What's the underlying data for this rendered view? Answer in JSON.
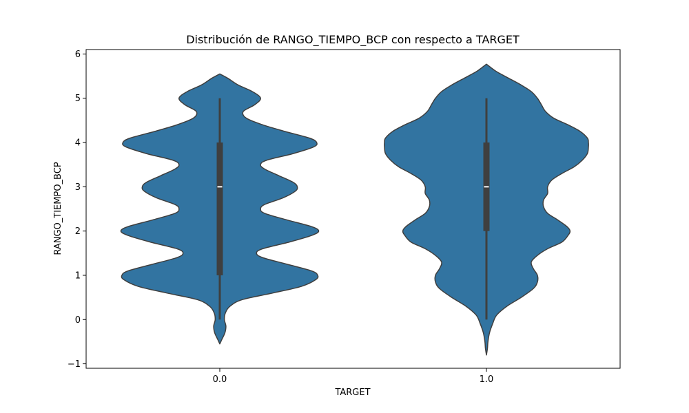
{
  "chart_data": {
    "type": "violin",
    "title": "Distribución de RANGO_TIEMPO_BCP con respecto a TARGET",
    "xlabel": "TARGET",
    "ylabel": "RANGO_TIEMPO_BCP",
    "categories": [
      "0.0",
      "1.0"
    ],
    "ylim": [
      -1.1,
      6.1
    ],
    "yticks": [
      -1,
      0,
      1,
      2,
      3,
      4,
      5,
      6
    ],
    "ytick_labels": [
      "−1",
      "0",
      "1",
      "2",
      "3",
      "4",
      "5",
      "6"
    ],
    "grid": false,
    "fill_color": "#3274a1",
    "edge_color": "#3f3f3f",
    "violins": [
      {
        "category": "0.0",
        "quartiles": {
          "q1": 1,
          "median": 3,
          "q3": 4
        },
        "whiskers": [
          0,
          5
        ],
        "density": [
          [
            -0.55,
            0.0
          ],
          [
            -0.45,
            0.02
          ],
          [
            -0.3,
            0.05
          ],
          [
            -0.15,
            0.06
          ],
          [
            0.0,
            0.045
          ],
          [
            0.15,
            0.055
          ],
          [
            0.3,
            0.1
          ],
          [
            0.45,
            0.22
          ],
          [
            0.6,
            0.52
          ],
          [
            0.75,
            0.8
          ],
          [
            0.9,
            0.94
          ],
          [
            1.0,
            0.96
          ],
          [
            1.1,
            0.9
          ],
          [
            1.25,
            0.66
          ],
          [
            1.4,
            0.42
          ],
          [
            1.5,
            0.36
          ],
          [
            1.6,
            0.42
          ],
          [
            1.75,
            0.68
          ],
          [
            1.9,
            0.9
          ],
          [
            2.0,
            0.97
          ],
          [
            2.1,
            0.9
          ],
          [
            2.25,
            0.66
          ],
          [
            2.4,
            0.44
          ],
          [
            2.5,
            0.4
          ],
          [
            2.6,
            0.44
          ],
          [
            2.75,
            0.62
          ],
          [
            2.9,
            0.74
          ],
          [
            3.0,
            0.76
          ],
          [
            3.1,
            0.72
          ],
          [
            3.25,
            0.58
          ],
          [
            3.4,
            0.44
          ],
          [
            3.5,
            0.4
          ],
          [
            3.6,
            0.46
          ],
          [
            3.75,
            0.72
          ],
          [
            3.9,
            0.92
          ],
          [
            4.0,
            0.95
          ],
          [
            4.1,
            0.88
          ],
          [
            4.25,
            0.64
          ],
          [
            4.4,
            0.42
          ],
          [
            4.55,
            0.26
          ],
          [
            4.7,
            0.23
          ],
          [
            4.85,
            0.34
          ],
          [
            5.0,
            0.4
          ],
          [
            5.15,
            0.32
          ],
          [
            5.3,
            0.18
          ],
          [
            5.45,
            0.08
          ],
          [
            5.55,
            0.0
          ]
        ]
      },
      {
        "category": "1.0",
        "quartiles": {
          "q1": 2,
          "median": 3,
          "q3": 4
        },
        "whiskers": [
          0,
          5
        ],
        "density": [
          [
            -0.8,
            0.0
          ],
          [
            -0.65,
            0.01
          ],
          [
            -0.5,
            0.015
          ],
          [
            -0.3,
            0.03
          ],
          [
            -0.1,
            0.06
          ],
          [
            0.1,
            0.1
          ],
          [
            0.3,
            0.2
          ],
          [
            0.5,
            0.34
          ],
          [
            0.7,
            0.46
          ],
          [
            0.85,
            0.5
          ],
          [
            1.0,
            0.5
          ],
          [
            1.15,
            0.46
          ],
          [
            1.3,
            0.44
          ],
          [
            1.45,
            0.5
          ],
          [
            1.6,
            0.6
          ],
          [
            1.75,
            0.74
          ],
          [
            1.9,
            0.8
          ],
          [
            2.0,
            0.82
          ],
          [
            2.1,
            0.79
          ],
          [
            2.25,
            0.7
          ],
          [
            2.4,
            0.6
          ],
          [
            2.55,
            0.56
          ],
          [
            2.7,
            0.56
          ],
          [
            2.85,
            0.6
          ],
          [
            3.0,
            0.6
          ],
          [
            3.15,
            0.64
          ],
          [
            3.3,
            0.74
          ],
          [
            3.45,
            0.86
          ],
          [
            3.6,
            0.94
          ],
          [
            3.75,
            0.99
          ],
          [
            3.9,
            1.0
          ],
          [
            4.0,
            1.0
          ],
          [
            4.1,
            0.99
          ],
          [
            4.25,
            0.92
          ],
          [
            4.4,
            0.8
          ],
          [
            4.55,
            0.66
          ],
          [
            4.7,
            0.58
          ],
          [
            4.85,
            0.54
          ],
          [
            5.0,
            0.5
          ],
          [
            5.15,
            0.44
          ],
          [
            5.3,
            0.34
          ],
          [
            5.45,
            0.22
          ],
          [
            5.6,
            0.1
          ],
          [
            5.7,
            0.04
          ],
          [
            5.77,
            0.0
          ]
        ]
      }
    ]
  }
}
